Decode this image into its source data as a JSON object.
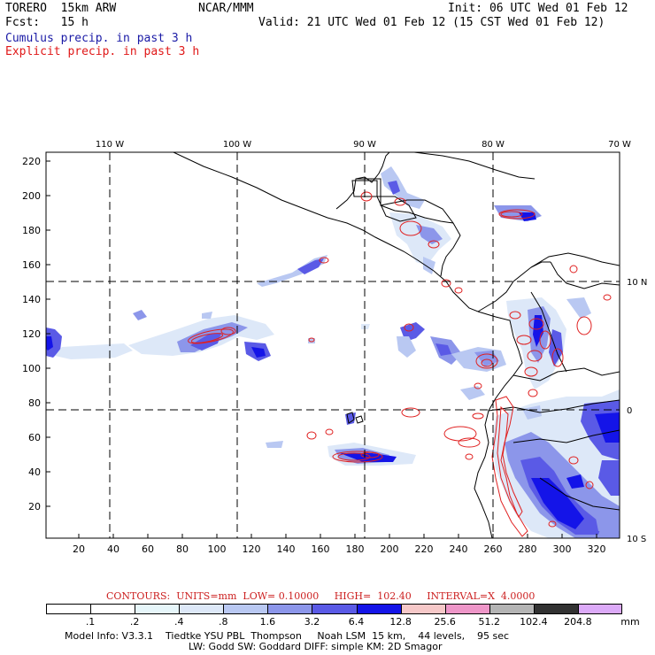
{
  "header": {
    "model": "TORERO  15km ARW",
    "center": "NCAR/MMM",
    "init": "Init: 06 UTC Wed 01 Feb 12",
    "fcst": "Fcst:   15 h",
    "valid": "Valid: 21 UTC Wed 01 Feb 12 (15 CST Wed 01 Feb 12)",
    "line_cumulus": "Cumulus precip. in past 3 h",
    "line_explicit": "Explicit precip. in past 3 h"
  },
  "map": {
    "lon_labels": [
      "110 W",
      "100 W",
      "90 W",
      "80 W",
      "70 W"
    ],
    "lat_labels": [
      "10 N",
      "0",
      "10 S"
    ],
    "y_ticks": [
      "220",
      "200",
      "180",
      "160",
      "140",
      "120",
      "100",
      "80",
      "60",
      "40",
      "20"
    ],
    "x_ticks": [
      "20",
      "40",
      "60",
      "80",
      "100",
      "120",
      "140",
      "160",
      "180",
      "200",
      "220",
      "240",
      "260",
      "280",
      "300",
      "320"
    ],
    "colors": {
      "cumulus": "#1f1fe0",
      "explicit": "#e02020",
      "land_border": "#000000",
      "grid": "#000000"
    }
  },
  "contours": {
    "label": "CONTOURS:  UNITS=mm  LOW= 0.10000     HIGH=  102.40     INTERVAL=X  4.0000"
  },
  "colorbar": {
    "labels": [
      ".1",
      ".2",
      ".4",
      ".8",
      "1.6",
      "3.2",
      "6.4",
      "12.8",
      "25.6",
      "51.2",
      "102.4",
      "204.8"
    ],
    "unit": "mm",
    "colors": [
      "#ffffff",
      "#ffffff",
      "#e6f6fa",
      "#dde8f8",
      "#b9c8f2",
      "#8c96ea",
      "#5a5ae6",
      "#1414e8",
      "#f6c8c8",
      "#ee96c8",
      "#b4b4b4",
      "#323232",
      "#dcaaf8"
    ]
  },
  "footer": {
    "line1": "Model Info: V3.3.1    Tiedtke YSU PBL  Thompson     Noah LSM  15 km,    44 levels,    95 sec",
    "line2": "LW: Godd SW: Goddard DIFF: simple KM: 2D Smagor"
  }
}
